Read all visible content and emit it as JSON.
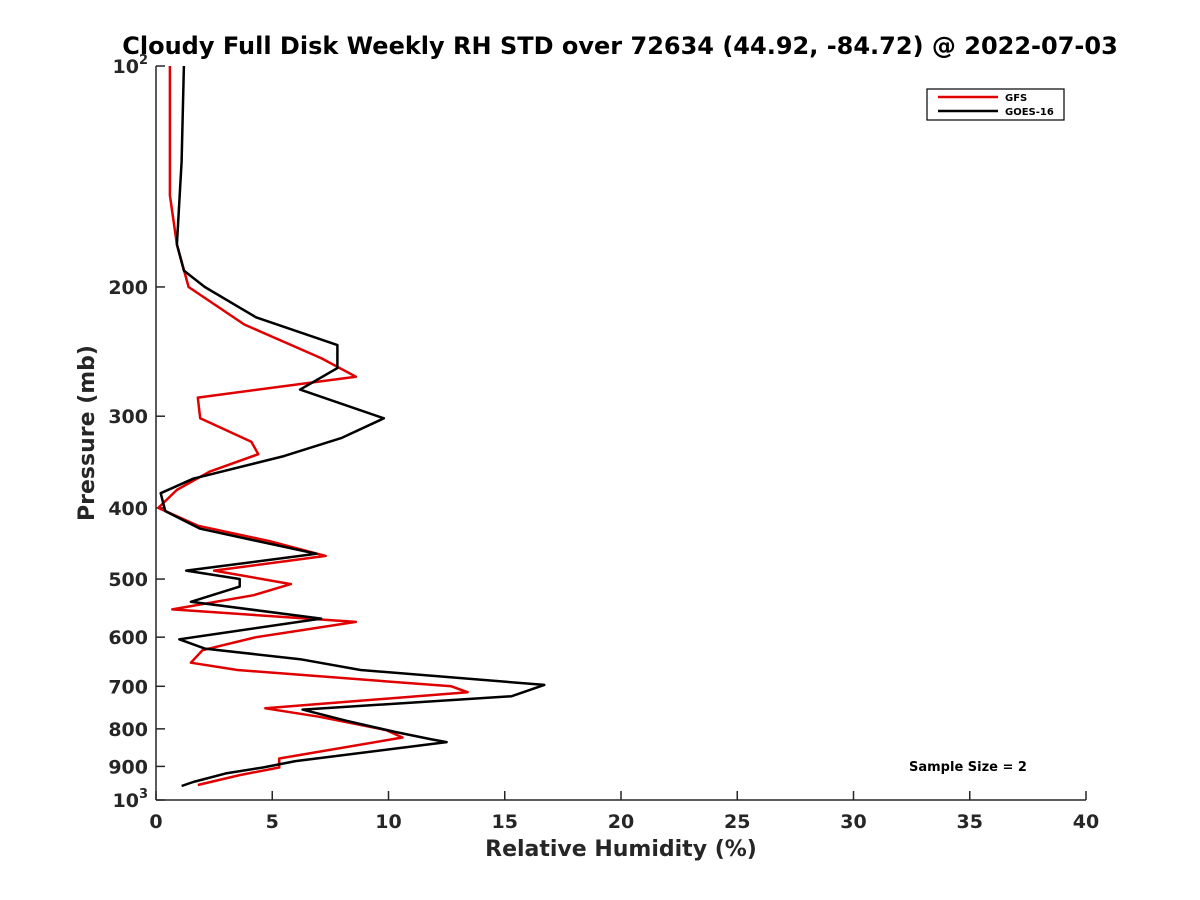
{
  "chart_data": {
    "type": "line",
    "title": "Cloudy Full Disk Weekly RH STD over 72634 (44.92, -84.72) @ 2022-07-03",
    "xlabel": "Relative Humidity (%)",
    "ylabel": "Pressure (mb)",
    "xlim": [
      0,
      40
    ],
    "ylim": [
      100,
      1000
    ],
    "yscale": "log",
    "y_reversed": true,
    "x_ticks": [
      0,
      5,
      10,
      15,
      20,
      25,
      30,
      35,
      40
    ],
    "x_tick_labels": [
      "0",
      "5",
      "10",
      "15",
      "20",
      "25",
      "30",
      "35",
      "40"
    ],
    "y_ticks": [
      100,
      200,
      300,
      400,
      500,
      600,
      700,
      800,
      900,
      1000
    ],
    "y_tick_labels": [
      {
        "base": "10",
        "exp": "2"
      },
      {
        "base": "200",
        "exp": ""
      },
      {
        "base": "300",
        "exp": ""
      },
      {
        "base": "400",
        "exp": ""
      },
      {
        "base": "500",
        "exp": ""
      },
      {
        "base": "600",
        "exp": ""
      },
      {
        "base": "700",
        "exp": ""
      },
      {
        "base": "800",
        "exp": ""
      },
      {
        "base": "900",
        "exp": ""
      },
      {
        "base": "10",
        "exp": "3"
      }
    ],
    "grid": false,
    "legend_position": "top-right",
    "annotation": "Sample Size = 2",
    "series": [
      {
        "name": "GFS",
        "color": "#e00000",
        "points": [
          [
            0.6,
            100
          ],
          [
            0.6,
            150
          ],
          [
            0.9,
            175
          ],
          [
            1.4,
            200
          ],
          [
            3.8,
            225
          ],
          [
            7.1,
            250
          ],
          [
            8.6,
            265
          ],
          [
            1.8,
            283
          ],
          [
            1.9,
            302
          ],
          [
            4.1,
            325
          ],
          [
            4.4,
            338
          ],
          [
            2.3,
            357
          ],
          [
            0.9,
            378
          ],
          [
            0.1,
            400
          ],
          [
            1.8,
            423
          ],
          [
            4.9,
            444
          ],
          [
            7.3,
            465
          ],
          [
            2.5,
            487
          ],
          [
            5.8,
            508
          ],
          [
            4.2,
            526
          ],
          [
            0.7,
            550
          ],
          [
            8.6,
            572
          ],
          [
            4.3,
            600
          ],
          [
            2.0,
            625
          ],
          [
            1.5,
            650
          ],
          [
            3.5,
            665
          ],
          [
            12.7,
            700
          ],
          [
            13.4,
            713
          ],
          [
            4.7,
            750
          ],
          [
            7.0,
            770
          ],
          [
            9.9,
            803
          ],
          [
            10.6,
            822
          ],
          [
            5.3,
            878
          ],
          [
            5.3,
            903
          ],
          [
            3.6,
            925
          ],
          [
            1.8,
            954
          ]
        ]
      },
      {
        "name": "GOES-16",
        "color": "#000000",
        "points": [
          [
            1.2,
            100
          ],
          [
            1.1,
            135
          ],
          [
            0.9,
            175
          ],
          [
            1.2,
            190
          ],
          [
            2.1,
            200
          ],
          [
            4.3,
            220
          ],
          [
            7.8,
            240
          ],
          [
            7.8,
            258
          ],
          [
            6.2,
            276
          ],
          [
            9.8,
            302
          ],
          [
            8.0,
            321
          ],
          [
            5.5,
            340
          ],
          [
            1.6,
            365
          ],
          [
            0.2,
            382
          ],
          [
            0.4,
            404
          ],
          [
            1.9,
            427
          ],
          [
            6.9,
            462
          ],
          [
            1.3,
            487
          ],
          [
            3.6,
            500
          ],
          [
            3.6,
            512
          ],
          [
            1.5,
            537
          ],
          [
            7.1,
            566
          ],
          [
            1.0,
            604
          ],
          [
            2.1,
            622
          ],
          [
            6.2,
            643
          ],
          [
            8.8,
            665
          ],
          [
            16.7,
            697
          ],
          [
            15.3,
            722
          ],
          [
            6.3,
            753
          ],
          [
            8.2,
            780
          ],
          [
            10.3,
            808
          ],
          [
            11.8,
            826
          ],
          [
            12.5,
            834
          ],
          [
            6.0,
            885
          ],
          [
            4.6,
            903
          ],
          [
            3.0,
            920
          ],
          [
            1.6,
            945
          ],
          [
            1.1,
            957
          ]
        ]
      }
    ]
  }
}
